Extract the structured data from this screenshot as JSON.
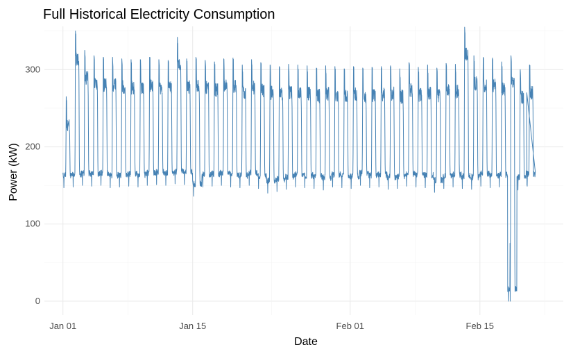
{
  "chart_data": {
    "type": "line",
    "title": "Full Historical Electricity Consumption",
    "xlabel": "Date",
    "ylabel": "Power (kW)",
    "x_start": "2010-01-01",
    "x_end": "2010-02-20",
    "xlim": [
      "2009-12-30",
      "2010-02-24"
    ],
    "ylim": [
      -18,
      356
    ],
    "x_ticks": [
      {
        "date": "2010-01-01",
        "label": "Jan 01"
      },
      {
        "date": "2010-01-15",
        "label": "Jan 15"
      },
      {
        "date": "2010-02-01",
        "label": "Feb 01"
      },
      {
        "date": "2010-02-15",
        "label": "Feb 15"
      }
    ],
    "y_ticks": [
      0,
      100,
      200,
      300
    ],
    "grid": true,
    "line_color": "#4682B4",
    "series": [
      {
        "name": "",
        "daily_profile_approx": {
          "dates": [
            "2010-01-01",
            "2010-01-02",
            "2010-01-03",
            "2010-01-04",
            "2010-01-05",
            "2010-01-06",
            "2010-01-07",
            "2010-01-08",
            "2010-01-09",
            "2010-01-10",
            "2010-01-11",
            "2010-01-12",
            "2010-01-13",
            "2010-01-14",
            "2010-01-15",
            "2010-01-16",
            "2010-01-17",
            "2010-01-18",
            "2010-01-19",
            "2010-01-20",
            "2010-01-21",
            "2010-01-22",
            "2010-01-23",
            "2010-01-24",
            "2010-01-25",
            "2010-01-26",
            "2010-01-27",
            "2010-01-28",
            "2010-01-29",
            "2010-01-30",
            "2010-01-31",
            "2010-02-01",
            "2010-02-02",
            "2010-02-03",
            "2010-02-04",
            "2010-02-05",
            "2010-02-06",
            "2010-02-07",
            "2010-02-08",
            "2010-02-09",
            "2010-02-10",
            "2010-02-11",
            "2010-02-12",
            "2010-02-13",
            "2010-02-14",
            "2010-02-15",
            "2010-02-16",
            "2010-02-17",
            "2010-02-18",
            "2010-02-19",
            "2010-02-20"
          ],
          "night_min": [
            147,
            148,
            150,
            149,
            150,
            147,
            148,
            149,
            148,
            150,
            151,
            150,
            152,
            151,
            136,
            148,
            149,
            150,
            148,
            147,
            150,
            146,
            140,
            142,
            145,
            148,
            147,
            146,
            144,
            148,
            147,
            146,
            150,
            147,
            148,
            145,
            146,
            149,
            148,
            147,
            141,
            146,
            148,
            146,
            145,
            149,
            147,
            148,
            0,
            144,
            149
          ],
          "day_max": [
            265,
            350,
            325,
            318,
            316,
            316,
            314,
            313,
            313,
            316,
            313,
            312,
            342,
            314,
            316,
            312,
            310,
            314,
            315,
            306,
            313,
            309,
            306,
            304,
            307,
            306,
            305,
            302,
            305,
            304,
            301,
            304,
            302,
            303,
            304,
            305,
            301,
            309,
            303,
            306,
            302,
            308,
            307,
            355,
            318,
            316,
            315,
            310,
            318,
            300,
            306
          ]
        }
      }
    ]
  }
}
